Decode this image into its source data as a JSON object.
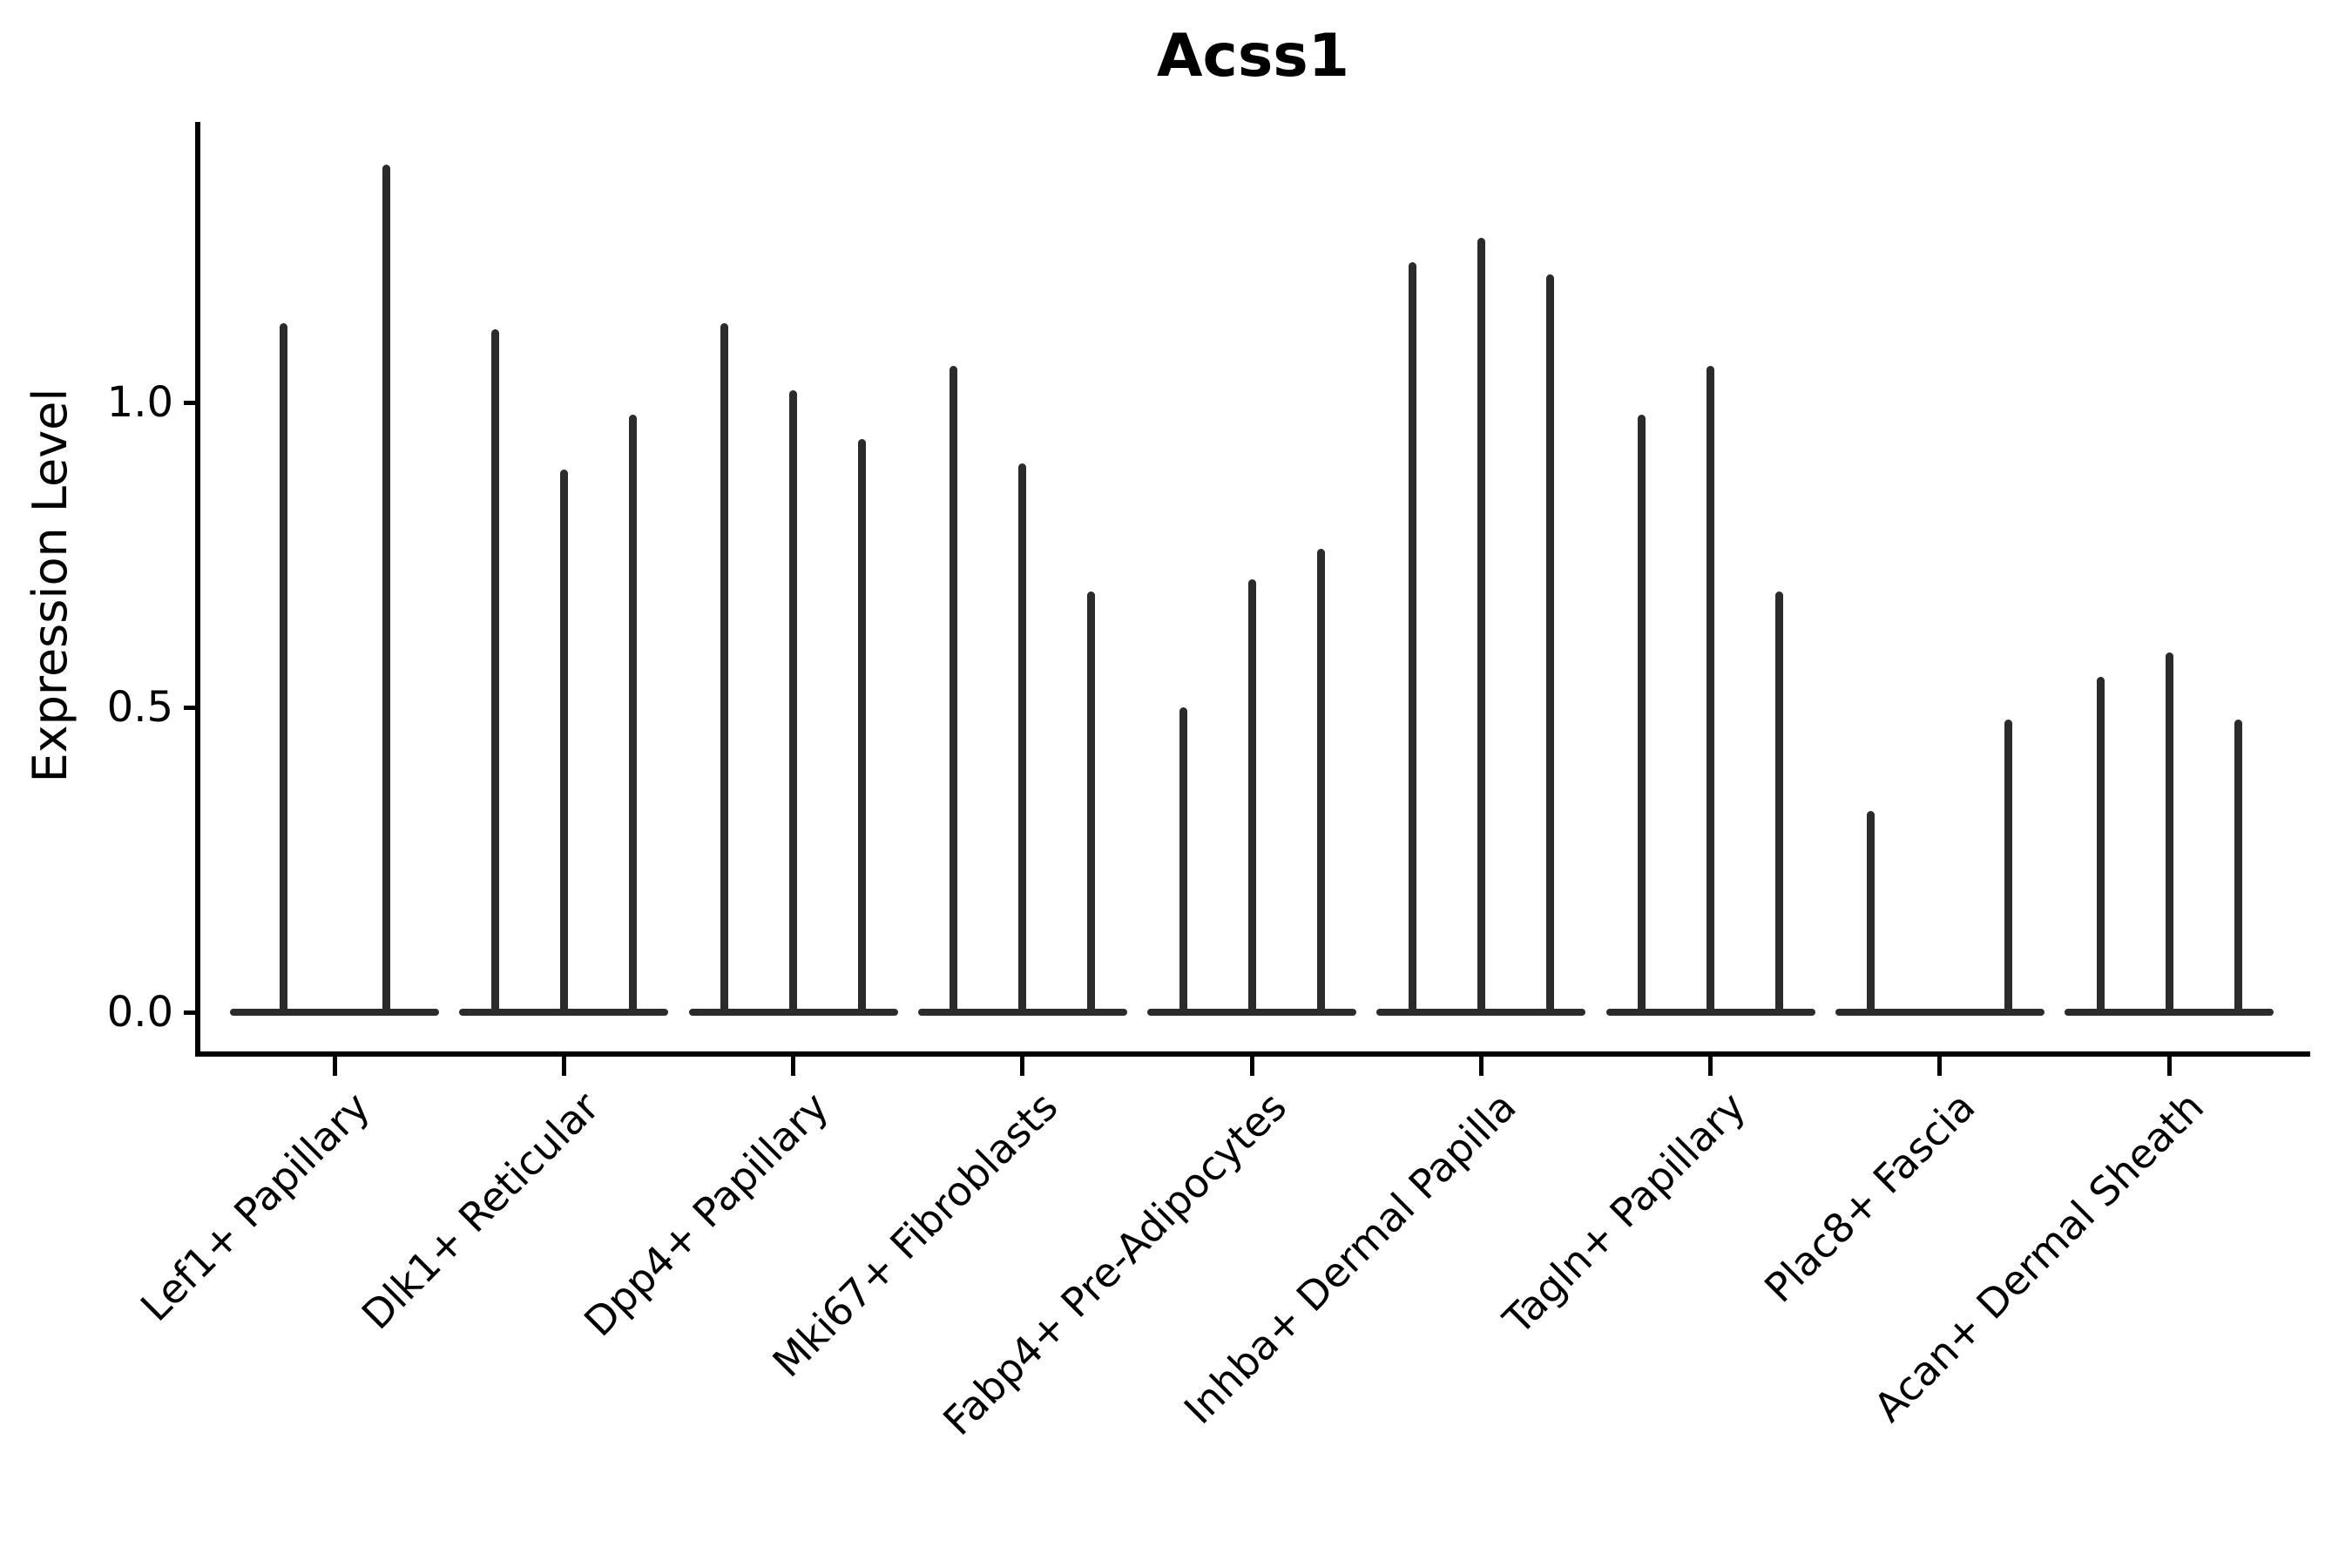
{
  "title": "Acss1",
  "y_axis": {
    "label": "Expression Level",
    "tick_labels": [
      "0.0",
      "0.5",
      "1.0"
    ]
  },
  "colors": {
    "ink": "#000000",
    "violin": "#2b2b2b",
    "background": "#ffffff"
  },
  "chart_data": {
    "type": "violin",
    "title": "Acss1",
    "xlabel": "",
    "ylabel": "Expression Level",
    "ylim": [
      0,
      1.46
    ],
    "y_ticks": [
      0.0,
      0.5,
      1.0
    ],
    "grid": false,
    "legend": "none",
    "categories": [
      "Lef1+ Papillary",
      "Dlk1+ Reticular",
      "Dpp4+ Papillary",
      "Mki67+ Fibroblasts",
      "Fabp4+ Pre-Adipocytes",
      "Inhba+ Dermal Papilla",
      "Tagln+ Papillary",
      "Plac8+ Fascia",
      "Acan+ Dermal Sheath"
    ],
    "groups": [
      {
        "label": "Lef1+ Papillary",
        "violin_tail_tips": [
          1.13,
          1.39
        ]
      },
      {
        "label": "Dlk1+ Reticular",
        "violin_tail_tips": [
          1.12,
          0.89,
          0.98
        ]
      },
      {
        "label": "Dpp4+ Papillary",
        "violin_tail_tips": [
          1.13,
          1.02,
          0.94
        ]
      },
      {
        "label": "Mki67+ Fibroblasts",
        "violin_tail_tips": [
          1.06,
          0.9,
          0.69
        ]
      },
      {
        "label": "Fabp4+ Pre-Adipocytes",
        "violin_tail_tips": [
          0.5,
          0.71,
          0.76
        ]
      },
      {
        "label": "Inhba+ Dermal Papilla",
        "violin_tail_tips": [
          1.23,
          1.27,
          1.21
        ]
      },
      {
        "label": "Tagln+ Papillary",
        "violin_tail_tips": [
          0.98,
          1.06,
          0.69
        ]
      },
      {
        "label": "Plac8+ Fascia",
        "violin_tail_tips": [
          0.33,
          null,
          0.48
        ]
      },
      {
        "label": "Acan+ Dermal Sheath",
        "violin_tail_tips": [
          0.55,
          0.59,
          0.48
        ]
      }
    ],
    "description": "Single-gene violin plot (expression of Acss1 per cluster). Each category contains 2-3 extremely thin violins: nearly all density is a flat bar at expression 0, with a narrow vertical tail whose tip reaches the listed value."
  }
}
